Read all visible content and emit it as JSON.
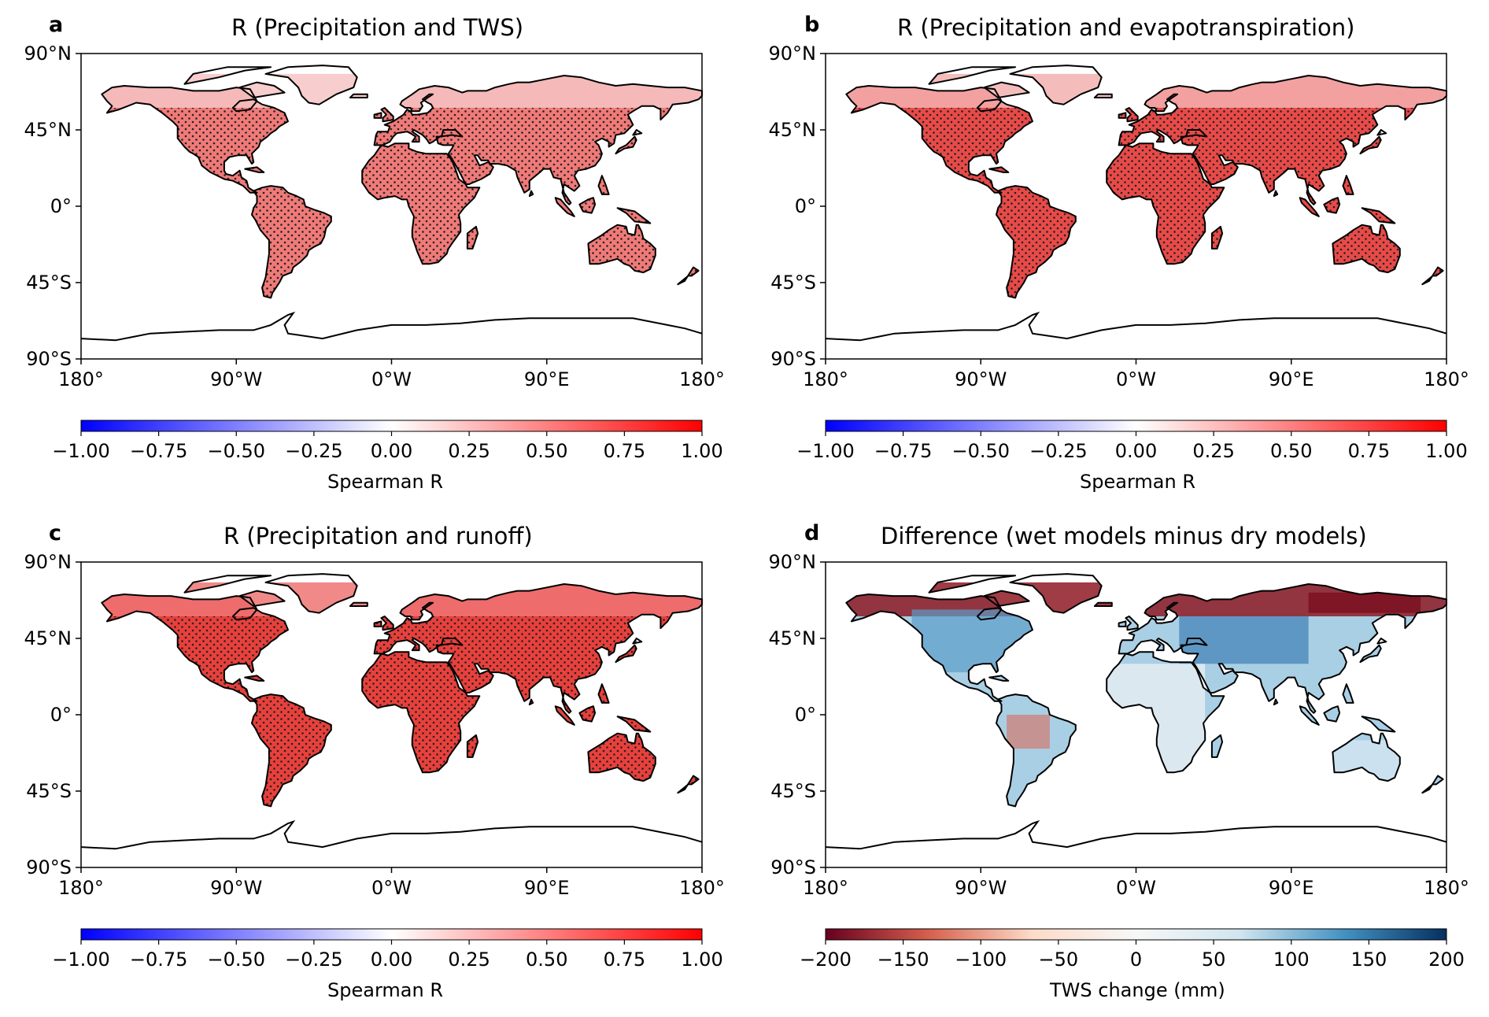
{
  "figure": {
    "lon_ticks": [
      "180°",
      "90°W",
      "0°W",
      "90°E",
      "180°"
    ],
    "lat_ticks": [
      "90°N",
      "45°N",
      "0°",
      "45°S",
      "90°S"
    ]
  },
  "panels": [
    {
      "letter": "a",
      "title": "R (Precipitation and TWS)",
      "colorbar": {
        "label": "Spearman R",
        "ticks": [
          "−1.00",
          "−0.75",
          "−0.50",
          "−0.25",
          "0.00",
          "0.25",
          "0.50",
          "0.75",
          "1.00"
        ],
        "cmap": "bwr"
      },
      "land_color": "#f07a78",
      "north_color": "#f6c4c4"
    },
    {
      "letter": "b",
      "title": "R (Precipitation and evapotranspiration)",
      "colorbar": {
        "label": "Spearman R",
        "ticks": [
          "−1.00",
          "−0.75",
          "−0.50",
          "−0.25",
          "0.00",
          "0.25",
          "0.50",
          "0.75",
          "1.00"
        ],
        "cmap": "bwr"
      },
      "land_color": "#e84a48",
      "north_color": "#f3b0b0"
    },
    {
      "letter": "c",
      "title": "R (Precipitation and runoff)",
      "colorbar": {
        "label": "Spearman R",
        "ticks": [
          "−1.00",
          "−0.75",
          "−0.50",
          "−0.25",
          "0.00",
          "0.25",
          "0.50",
          "0.75",
          "1.00"
        ],
        "cmap": "bwr"
      },
      "land_color": "#e8403c",
      "north_color": "#ee7474"
    },
    {
      "letter": "d",
      "title": "Difference (wet models minus dry models)",
      "colorbar": {
        "label": "TWS change (mm)",
        "ticks": [
          "−200",
          "−150",
          "−100",
          "−50",
          "0",
          "50",
          "100",
          "150",
          "200"
        ],
        "cmap": "RdBu"
      },
      "land_color": "#a9cfe4",
      "north_color": "#8e1a24"
    }
  ],
  "colors": {
    "bwr": [
      "#0000ff",
      "#ffffff",
      "#ff0000"
    ],
    "RdBu": [
      "#67001f",
      "#d6604d",
      "#fddbc7",
      "#f7f7f7",
      "#d1e5f0",
      "#4393c3",
      "#053061"
    ],
    "coast": "#000000",
    "stipple": "#222222"
  }
}
